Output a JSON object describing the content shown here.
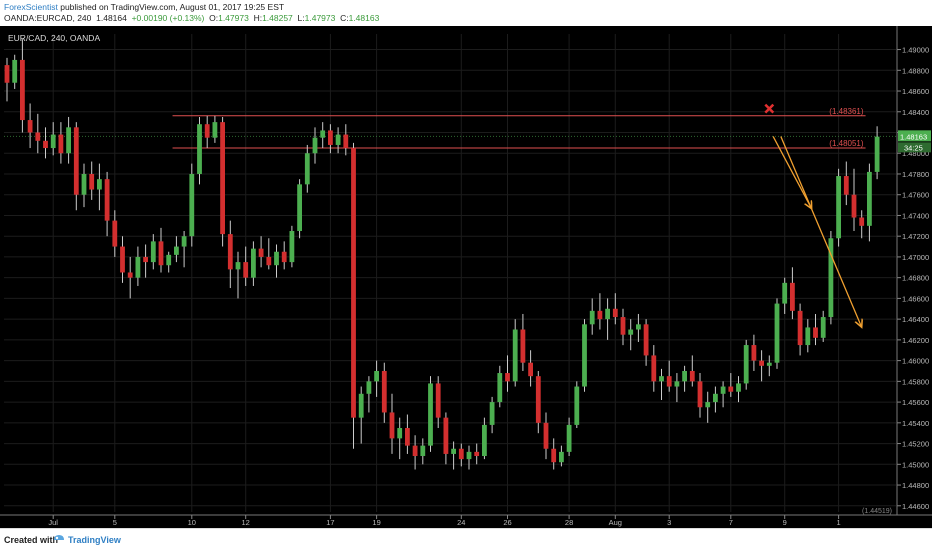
{
  "header": {
    "author": "ForexScientist",
    "published": " published on TradingView.com, August 01, 2017 19:25 EST",
    "symbol": "OANDA:EURCAD, 240",
    "last": "1.48164",
    "change": "+0.00190 (+0.13%)",
    "o_label": "O:",
    "o_val": "1.47973",
    "h_label": "H:",
    "h_val": "1.48257",
    "l_label": "L:",
    "l_val": "1.47973",
    "c_label": "C:",
    "c_val": "1.48163"
  },
  "chart_data": {
    "type": "candlestick",
    "title": "EUR/CAD, 240, OANDA",
    "y_ticks": [
      "1.49000",
      "1.48800",
      "1.48600",
      "1.48400",
      "1.48200",
      "1.48000",
      "1.47800",
      "1.47600",
      "1.47400",
      "1.47200",
      "1.47000",
      "1.46800",
      "1.46600",
      "1.46400",
      "1.46200",
      "1.46000",
      "1.45800",
      "1.45600",
      "1.45400",
      "1.45200",
      "1.45000",
      "1.44800",
      "1.44600"
    ],
    "y_tick_values": [
      1.49,
      1.488,
      1.486,
      1.484,
      1.482,
      1.48,
      1.478,
      1.476,
      1.474,
      1.472,
      1.47,
      1.468,
      1.466,
      1.464,
      1.462,
      1.46,
      1.458,
      1.456,
      1.454,
      1.452,
      1.45,
      1.448,
      1.446
    ],
    "ylim": [
      1.4454,
      1.4915
    ],
    "x_ticks": [
      "Jul",
      "5",
      "10",
      "12",
      "17",
      "19",
      "24",
      "26",
      "28",
      "Aug",
      "3",
      "7",
      "9",
      "1"
    ],
    "x_tick_index": [
      6,
      14,
      24,
      31,
      42,
      48,
      59,
      65,
      73,
      79,
      86,
      94,
      101,
      108
    ],
    "x_range": [
      0,
      112
    ],
    "levels": [
      {
        "label": "(1.48361)",
        "value": 1.48361,
        "color": "#e05050"
      },
      {
        "label": "(1.48051)",
        "value": 1.48051,
        "color": "#e05050"
      }
    ],
    "last_price": {
      "label": "1.48163",
      "value": 1.48163,
      "color": "#4caf50"
    },
    "countdown": {
      "label": "34:25"
    },
    "bottom_label": "(1.44519)",
    "up_color": "#4caf50",
    "down_color": "#d32f2f",
    "candles": [
      [
        1.4885,
        1.4892,
        1.485,
        1.4868
      ],
      [
        1.4868,
        1.4895,
        1.4862,
        1.489
      ],
      [
        1.489,
        1.491,
        1.482,
        1.4832
      ],
      [
        1.4832,
        1.4848,
        1.4805,
        1.482
      ],
      [
        1.482,
        1.4838,
        1.48,
        1.4812
      ],
      [
        1.4812,
        1.4825,
        1.4795,
        1.4805
      ],
      [
        1.4805,
        1.483,
        1.4798,
        1.4818
      ],
      [
        1.4818,
        1.483,
        1.479,
        1.48
      ],
      [
        1.48,
        1.4835,
        1.479,
        1.4825
      ],
      [
        1.4825,
        1.483,
        1.4745,
        1.476
      ],
      [
        1.476,
        1.479,
        1.4748,
        1.478
      ],
      [
        1.478,
        1.4792,
        1.4755,
        1.4765
      ],
      [
        1.4765,
        1.479,
        1.4745,
        1.4775
      ],
      [
        1.4775,
        1.4782,
        1.472,
        1.4735
      ],
      [
        1.4735,
        1.4745,
        1.47,
        1.471
      ],
      [
        1.471,
        1.472,
        1.4675,
        1.4685
      ],
      [
        1.4685,
        1.47,
        1.466,
        1.468
      ],
      [
        1.468,
        1.471,
        1.4672,
        1.47
      ],
      [
        1.47,
        1.4712,
        1.468,
        1.4695
      ],
      [
        1.4695,
        1.4722,
        1.4688,
        1.4715
      ],
      [
        1.4715,
        1.4728,
        1.4685,
        1.4692
      ],
      [
        1.4692,
        1.4705,
        1.4685,
        1.4702
      ],
      [
        1.4702,
        1.472,
        1.4695,
        1.471
      ],
      [
        1.471,
        1.4725,
        1.469,
        1.472
      ],
      [
        1.472,
        1.479,
        1.471,
        1.478
      ],
      [
        1.478,
        1.4835,
        1.477,
        1.4828
      ],
      [
        1.4828,
        1.4836,
        1.4805,
        1.4815
      ],
      [
        1.4815,
        1.4836,
        1.481,
        1.483
      ],
      [
        1.483,
        1.4835,
        1.471,
        1.4722
      ],
      [
        1.4722,
        1.4735,
        1.467,
        1.4688
      ],
      [
        1.4688,
        1.4705,
        1.466,
        1.4695
      ],
      [
        1.4695,
        1.471,
        1.4672,
        1.468
      ],
      [
        1.468,
        1.4715,
        1.4672,
        1.4708
      ],
      [
        1.4708,
        1.472,
        1.469,
        1.47
      ],
      [
        1.47,
        1.4718,
        1.4688,
        1.4692
      ],
      [
        1.4692,
        1.4712,
        1.468,
        1.4705
      ],
      [
        1.4705,
        1.4715,
        1.4688,
        1.4695
      ],
      [
        1.4695,
        1.473,
        1.469,
        1.4725
      ],
      [
        1.4725,
        1.4775,
        1.4718,
        1.477
      ],
      [
        1.477,
        1.4808,
        1.4762,
        1.48
      ],
      [
        1.48,
        1.4825,
        1.479,
        1.4815
      ],
      [
        1.4815,
        1.483,
        1.4805,
        1.4822
      ],
      [
        1.4822,
        1.4828,
        1.48,
        1.4808
      ],
      [
        1.4808,
        1.4825,
        1.48,
        1.4818
      ],
      [
        1.4818,
        1.4828,
        1.4798,
        1.4805
      ],
      [
        1.4805,
        1.481,
        1.4515,
        1.4545
      ],
      [
        1.4545,
        1.4575,
        1.452,
        1.4568
      ],
      [
        1.4568,
        1.4585,
        1.455,
        1.458
      ],
      [
        1.458,
        1.46,
        1.4565,
        1.459
      ],
      [
        1.459,
        1.4598,
        1.454,
        1.455
      ],
      [
        1.455,
        1.4568,
        1.451,
        1.4525
      ],
      [
        1.4525,
        1.4545,
        1.4505,
        1.4535
      ],
      [
        1.4535,
        1.4548,
        1.451,
        1.4518
      ],
      [
        1.4518,
        1.4528,
        1.4495,
        1.4508
      ],
      [
        1.4508,
        1.4525,
        1.45,
        1.4518
      ],
      [
        1.4518,
        1.4585,
        1.4512,
        1.4578
      ],
      [
        1.4578,
        1.4585,
        1.4535,
        1.4545
      ],
      [
        1.4545,
        1.455,
        1.45,
        1.451
      ],
      [
        1.451,
        1.4522,
        1.4495,
        1.4515
      ],
      [
        1.4515,
        1.452,
        1.4498,
        1.4505
      ],
      [
        1.4505,
        1.4518,
        1.4495,
        1.4512
      ],
      [
        1.4512,
        1.452,
        1.45,
        1.4508
      ],
      [
        1.4508,
        1.4545,
        1.4505,
        1.4538
      ],
      [
        1.4538,
        1.4565,
        1.453,
        1.456
      ],
      [
        1.456,
        1.4595,
        1.4555,
        1.4588
      ],
      [
        1.4588,
        1.4605,
        1.457,
        1.458
      ],
      [
        1.458,
        1.464,
        1.4575,
        1.463
      ],
      [
        1.463,
        1.4645,
        1.459,
        1.4598
      ],
      [
        1.4598,
        1.461,
        1.4575,
        1.4585
      ],
      [
        1.4585,
        1.459,
        1.453,
        1.454
      ],
      [
        1.454,
        1.455,
        1.4505,
        1.4515
      ],
      [
        1.4515,
        1.4525,
        1.4495,
        1.4502
      ],
      [
        1.4502,
        1.4518,
        1.4498,
        1.4512
      ],
      [
        1.4512,
        1.4545,
        1.4508,
        1.4538
      ],
      [
        1.4538,
        1.458,
        1.4535,
        1.4575
      ],
      [
        1.4575,
        1.464,
        1.457,
        1.4635
      ],
      [
        1.4635,
        1.466,
        1.4625,
        1.4648
      ],
      [
        1.4648,
        1.4665,
        1.463,
        1.464
      ],
      [
        1.464,
        1.466,
        1.462,
        1.465
      ],
      [
        1.465,
        1.4665,
        1.4635,
        1.4642
      ],
      [
        1.4642,
        1.465,
        1.4615,
        1.4625
      ],
      [
        1.4625,
        1.464,
        1.461,
        1.463
      ],
      [
        1.463,
        1.4645,
        1.4618,
        1.4635
      ],
      [
        1.4635,
        1.464,
        1.4595,
        1.4605
      ],
      [
        1.4605,
        1.4615,
        1.457,
        1.458
      ],
      [
        1.458,
        1.4592,
        1.4562,
        1.4585
      ],
      [
        1.4585,
        1.46,
        1.457,
        1.4575
      ],
      [
        1.4575,
        1.4588,
        1.456,
        1.458
      ],
      [
        1.458,
        1.4595,
        1.457,
        1.459
      ],
      [
        1.459,
        1.4605,
        1.4575,
        1.458
      ],
      [
        1.458,
        1.4588,
        1.4545,
        1.4555
      ],
      [
        1.4555,
        1.457,
        1.454,
        1.456
      ],
      [
        1.456,
        1.4575,
        1.455,
        1.4568
      ],
      [
        1.4568,
        1.458,
        1.4555,
        1.4575
      ],
      [
        1.4575,
        1.4588,
        1.4565,
        1.457
      ],
      [
        1.457,
        1.4585,
        1.456,
        1.4578
      ],
      [
        1.4578,
        1.462,
        1.4572,
        1.4615
      ],
      [
        1.4615,
        1.4625,
        1.459,
        1.46
      ],
      [
        1.46,
        1.461,
        1.458,
        1.4595
      ],
      [
        1.4595,
        1.4605,
        1.4585,
        1.4598
      ],
      [
        1.4598,
        1.466,
        1.4592,
        1.4655
      ],
      [
        1.4655,
        1.468,
        1.4645,
        1.4675
      ],
      [
        1.4675,
        1.469,
        1.464,
        1.4648
      ],
      [
        1.4648,
        1.4655,
        1.4605,
        1.4615
      ],
      [
        1.4615,
        1.464,
        1.4608,
        1.4632
      ],
      [
        1.4632,
        1.4645,
        1.4615,
        1.4622
      ],
      [
        1.4622,
        1.4648,
        1.4618,
        1.4642
      ],
      [
        1.4642,
        1.4725,
        1.4635,
        1.4718
      ],
      [
        1.4718,
        1.4785,
        1.471,
        1.4778
      ],
      [
        1.4778,
        1.4792,
        1.475,
        1.476
      ],
      [
        1.476,
        1.4785,
        1.4725,
        1.4738
      ],
      [
        1.4738,
        1.4745,
        1.4718,
        1.473
      ],
      [
        1.473,
        1.479,
        1.4715,
        1.4782
      ],
      [
        1.4782,
        1.4826,
        1.4775,
        1.4816
      ]
    ],
    "arrows": [
      {
        "from": [
          99.5,
          1.48162
        ],
        "to": [
          104.5,
          1.47465
        ]
      },
      {
        "from": [
          100.5,
          1.48162
        ],
        "to": [
          111.0,
          1.46322
        ]
      }
    ],
    "marker": {
      "x": 99.0,
      "y": 1.4843,
      "symbol": "x",
      "color": "#e03030"
    },
    "level_start": 21.5,
    "level_end": 111.5
  },
  "footer": {
    "created": "Created with",
    "brand": "TradingView"
  }
}
